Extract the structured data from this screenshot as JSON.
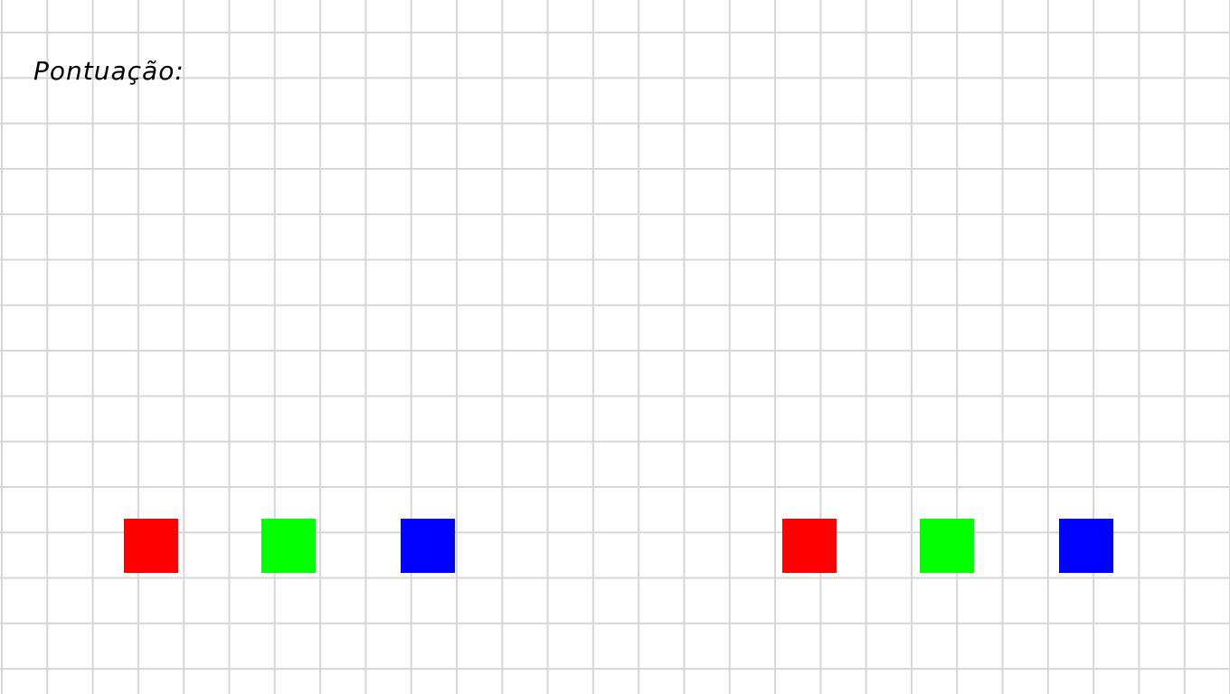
{
  "score": {
    "label": "Pontuação:",
    "value": ""
  },
  "blocks": [
    {
      "name": "red-block-left",
      "color": "#ff0000"
    },
    {
      "name": "green-block-left",
      "color": "#00ff00"
    },
    {
      "name": "blue-block-left",
      "color": "#0000ff"
    },
    {
      "name": "red-block-right",
      "color": "#ff0000"
    },
    {
      "name": "green-block-right",
      "color": "#00ff00"
    },
    {
      "name": "blue-block-right",
      "color": "#0000ff"
    }
  ],
  "colors": {
    "background": "#ffffff",
    "grid": "#d6d6d6",
    "text": "#000000"
  }
}
